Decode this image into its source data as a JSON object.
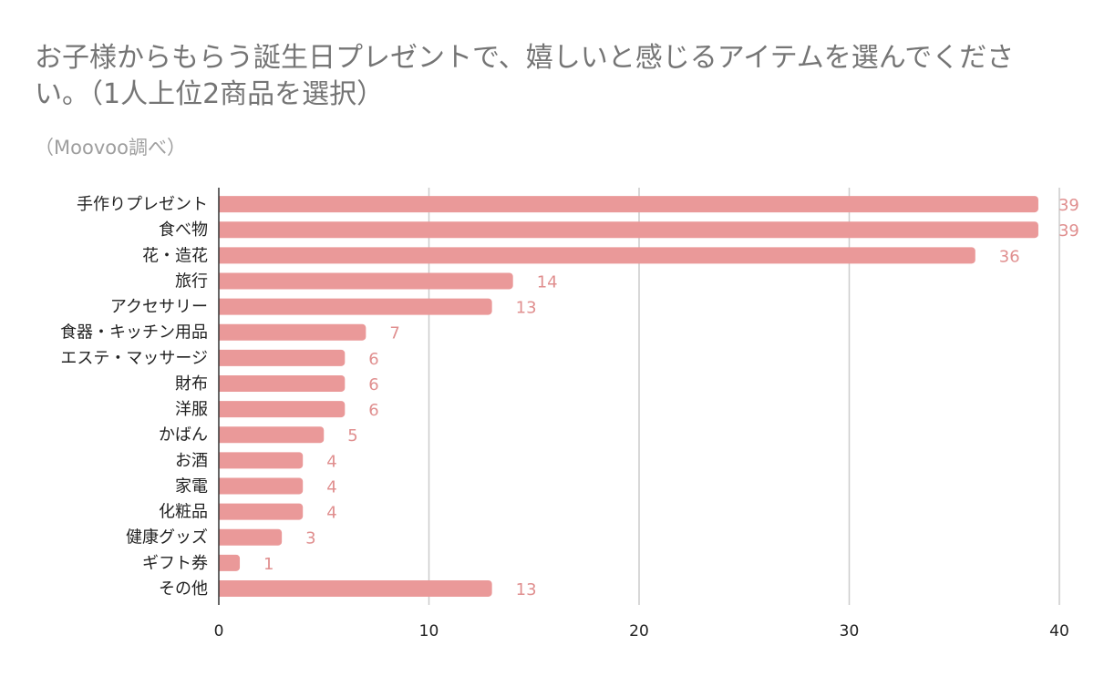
{
  "chart_data": {
    "type": "bar",
    "orientation": "horizontal",
    "title": "お子様からもらう誕生日プレゼントで、嬉しいと感じるアイテムを選んでください。（1人上位2商品を選択）",
    "subtitle": "（Moovoo調べ）",
    "categories": [
      "手作りプレゼント",
      "食べ物",
      "花・造花",
      "旅行",
      "アクセサリー",
      "食器・キッチン用品",
      "エステ・マッサージ",
      "財布",
      "洋服",
      "かばん",
      "お酒",
      "家電",
      "化粧品",
      "健康グッズ",
      "ギフト券",
      "その他"
    ],
    "values": [
      39,
      39,
      36,
      14,
      13,
      7,
      6,
      6,
      6,
      5,
      4,
      4,
      4,
      3,
      1,
      13
    ],
    "xlim": [
      0,
      40
    ],
    "xticks": [
      0,
      10,
      20,
      30,
      40
    ],
    "grid": true,
    "legend": "none",
    "bar_color": "#ea9999",
    "label_color": "#e08f8f"
  }
}
